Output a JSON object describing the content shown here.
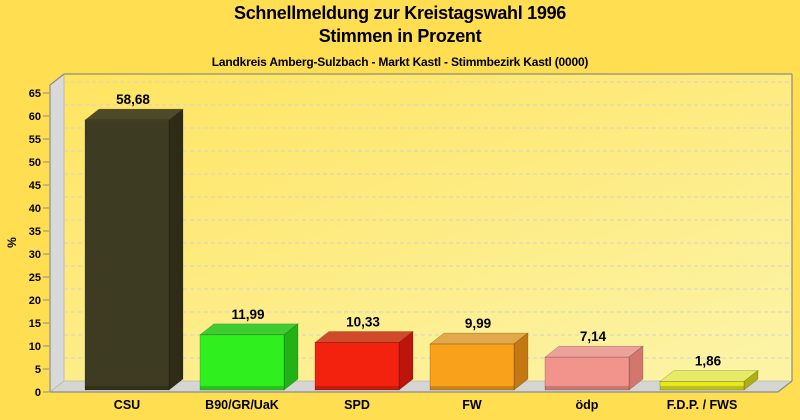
{
  "header": {
    "title_line1": "Schnellmeldung zur Kreistagswahl 1996",
    "title_line2": "Stimmen in Prozent",
    "region_line": "Landkreis Amberg-Sulzbach - Markt Kastl - Stimmbezirk Kastl (0000)"
  },
  "chart_data": {
    "type": "bar",
    "style": "3d-column",
    "title": "Schnellmeldung zur Kreistagswahl 1996 — Stimmen in Prozent",
    "subtitle": "Landkreis Amberg-Sulzbach - Markt Kastl - Stimmbezirk Kastl (0000)",
    "categories": [
      "CSU",
      "B90/GR/UaK",
      "SPD",
      "FW",
      "ödp",
      "F.D.P. / FWS"
    ],
    "values": [
      58.68,
      11.99,
      10.33,
      9.99,
      7.14,
      1.86
    ],
    "value_labels": [
      "58,68",
      "11,99",
      "10,33",
      "9,99",
      "7,14",
      "1,86"
    ],
    "xlabel": "",
    "ylabel": "%",
    "ylim": [
      0,
      65
    ],
    "ytick_step": 5,
    "grid": "dashed-horizontal",
    "legend": "none",
    "bar_colors": [
      {
        "party": "CSU",
        "front": "#3D3B22",
        "top": "#4E4929",
        "side": "#2E2C17"
      },
      {
        "party": "B90/GR/UaK",
        "front": "#2FF01E",
        "top": "#3FCC30",
        "side": "#22B215"
      },
      {
        "party": "SPD",
        "front": "#F3220F",
        "top": "#D04A29",
        "side": "#BC150B"
      },
      {
        "party": "FW",
        "front": "#F9A11B",
        "top": "#E2A849",
        "side": "#C37811"
      },
      {
        "party": "ödp",
        "front": "#F2938C",
        "top": "#EAA299",
        "side": "#D3766E"
      },
      {
        "party": "F.D.P. / FWS",
        "front": "#E7E822",
        "top": "#E9E968",
        "side": "#AEAF12"
      }
    ],
    "colors": {
      "page_bg": "#FFDE52",
      "plot_bg_from": "#FFE45F",
      "plot_bg_to": "#FCF3A4",
      "wall": "#D9D9DC",
      "floor": "#D5D5D3",
      "frame": "#8D8D80",
      "inner_edge": "#BBBBAE",
      "gridline": "#D4D3C6",
      "text": "#000000"
    }
  }
}
